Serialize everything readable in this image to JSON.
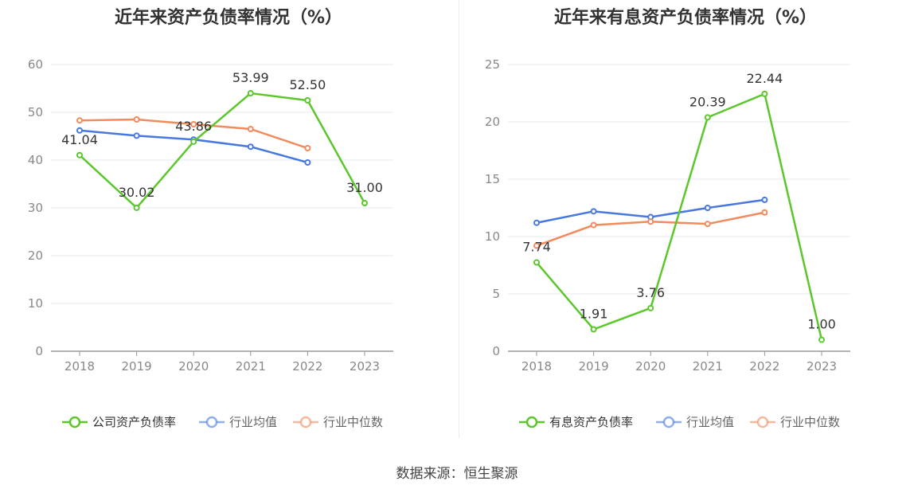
{
  "source_text": "数据来源：恒生聚源",
  "colors": {
    "company": "#5cc72c",
    "avg": "#4678e0",
    "median": "#f28a5c",
    "grid": "#e6e9f0",
    "axis": "#999999",
    "tick": "#888888"
  },
  "chart_data": [
    {
      "type": "line",
      "title": "近年来资产负债率情况（%）",
      "categories": [
        "2018",
        "2019",
        "2020",
        "2021",
        "2022",
        "2023"
      ],
      "ylim": [
        0,
        60
      ],
      "yticks": [
        0,
        10,
        20,
        30,
        40,
        50,
        60
      ],
      "grid": true,
      "legend_position": "bottom",
      "series": [
        {
          "name": "公司资产负债率",
          "color": "#5cc72c",
          "values": [
            41.04,
            30.02,
            43.86,
            53.99,
            52.5,
            31.0
          ],
          "labels": [
            "41.04",
            "30.02",
            "43.86",
            "53.99",
            "52.50",
            "31.00"
          ]
        },
        {
          "name": "行业均值",
          "color": "#4678e0",
          "values": [
            46.2,
            45.1,
            44.3,
            42.8,
            39.5,
            null
          ]
        },
        {
          "name": "行业中位数",
          "color": "#f28a5c",
          "values": [
            48.3,
            48.5,
            47.5,
            46.5,
            42.5,
            null
          ]
        }
      ]
    },
    {
      "type": "line",
      "title": "近年来有息资产负债率情况（%）",
      "categories": [
        "2018",
        "2019",
        "2020",
        "2021",
        "2022",
        "2023"
      ],
      "ylim": [
        0,
        25
      ],
      "yticks": [
        0,
        5,
        10,
        15,
        20,
        25
      ],
      "grid": true,
      "legend_position": "bottom",
      "series": [
        {
          "name": "有息资产负债率",
          "color": "#5cc72c",
          "values": [
            7.74,
            1.91,
            3.76,
            20.39,
            22.44,
            1.0
          ],
          "labels": [
            "7.74",
            "1.91",
            "3.76",
            "20.39",
            "22.44",
            "1.00"
          ]
        },
        {
          "name": "行业均值",
          "color": "#4678e0",
          "values": [
            11.2,
            12.2,
            11.7,
            12.5,
            13.2,
            null
          ]
        },
        {
          "name": "行业中位数",
          "color": "#f28a5c",
          "values": [
            9.2,
            11.0,
            11.3,
            11.1,
            12.1,
            null
          ]
        }
      ]
    }
  ]
}
